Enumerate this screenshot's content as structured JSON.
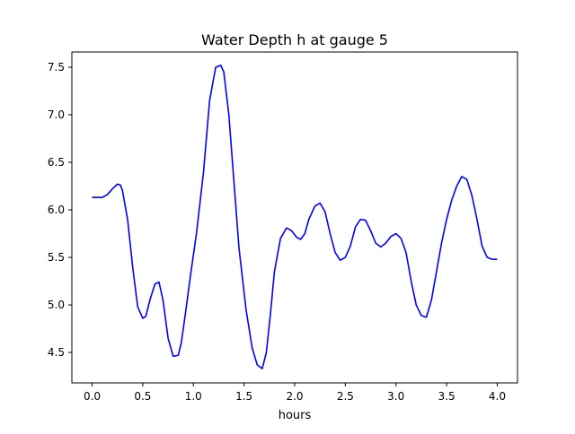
{
  "chart_data": {
    "type": "line",
    "title": "Water Depth h at gauge 5",
    "xlabel": "hours",
    "ylabel": "",
    "xlim": [
      -0.2,
      4.2
    ],
    "ylim": [
      4.18,
      7.66
    ],
    "xticks": [
      0.0,
      0.5,
      1.0,
      1.5,
      2.0,
      2.5,
      3.0,
      3.5,
      4.0
    ],
    "xtick_labels": [
      "0.0",
      "0.5",
      "1.0",
      "1.5",
      "2.0",
      "2.5",
      "3.0",
      "3.5",
      "4.0"
    ],
    "yticks": [
      4.5,
      5.0,
      5.5,
      6.0,
      6.5,
      7.0,
      7.5
    ],
    "ytick_labels": [
      "4.5",
      "5.0",
      "5.5",
      "6.0",
      "6.5",
      "7.0",
      "7.5"
    ],
    "grid": false,
    "series": [
      {
        "name": "",
        "color": "#0000ff",
        "x": [
          0.0,
          0.05,
          0.1,
          0.15,
          0.2,
          0.25,
          0.28,
          0.3,
          0.35,
          0.4,
          0.45,
          0.5,
          0.53,
          0.57,
          0.62,
          0.66,
          0.7,
          0.75,
          0.8,
          0.85,
          0.88,
          0.92,
          0.97,
          1.03,
          1.1,
          1.16,
          1.22,
          1.27,
          1.3,
          1.35,
          1.4,
          1.45,
          1.52,
          1.58,
          1.63,
          1.68,
          1.72,
          1.76,
          1.8,
          1.86,
          1.92,
          1.97,
          2.02,
          2.06,
          2.1,
          2.14,
          2.2,
          2.25,
          2.3,
          2.35,
          2.4,
          2.45,
          2.5,
          2.55,
          2.6,
          2.65,
          2.7,
          2.75,
          2.8,
          2.85,
          2.9,
          2.95,
          3.0,
          3.05,
          3.1,
          3.15,
          3.2,
          3.25,
          3.3,
          3.35,
          3.4,
          3.45,
          3.5,
          3.55,
          3.6,
          3.65,
          3.7,
          3.75,
          3.8,
          3.85,
          3.9,
          3.95,
          4.0
        ],
        "y": [
          6.13,
          6.13,
          6.13,
          6.16,
          6.22,
          6.27,
          6.26,
          6.2,
          5.9,
          5.4,
          4.98,
          4.86,
          4.88,
          5.05,
          5.22,
          5.24,
          5.05,
          4.65,
          4.46,
          4.47,
          4.6,
          4.9,
          5.3,
          5.75,
          6.4,
          7.15,
          7.5,
          7.52,
          7.45,
          7.0,
          6.3,
          5.6,
          4.95,
          4.55,
          4.37,
          4.33,
          4.5,
          4.9,
          5.35,
          5.7,
          5.81,
          5.78,
          5.71,
          5.69,
          5.75,
          5.9,
          6.04,
          6.07,
          5.98,
          5.75,
          5.55,
          5.47,
          5.5,
          5.62,
          5.82,
          5.9,
          5.89,
          5.78,
          5.65,
          5.61,
          5.65,
          5.72,
          5.75,
          5.7,
          5.55,
          5.25,
          5.0,
          4.89,
          4.87,
          5.05,
          5.35,
          5.65,
          5.9,
          6.1,
          6.25,
          6.35,
          6.32,
          6.15,
          5.9,
          5.62,
          5.5,
          5.48,
          5.48
        ]
      }
    ]
  }
}
